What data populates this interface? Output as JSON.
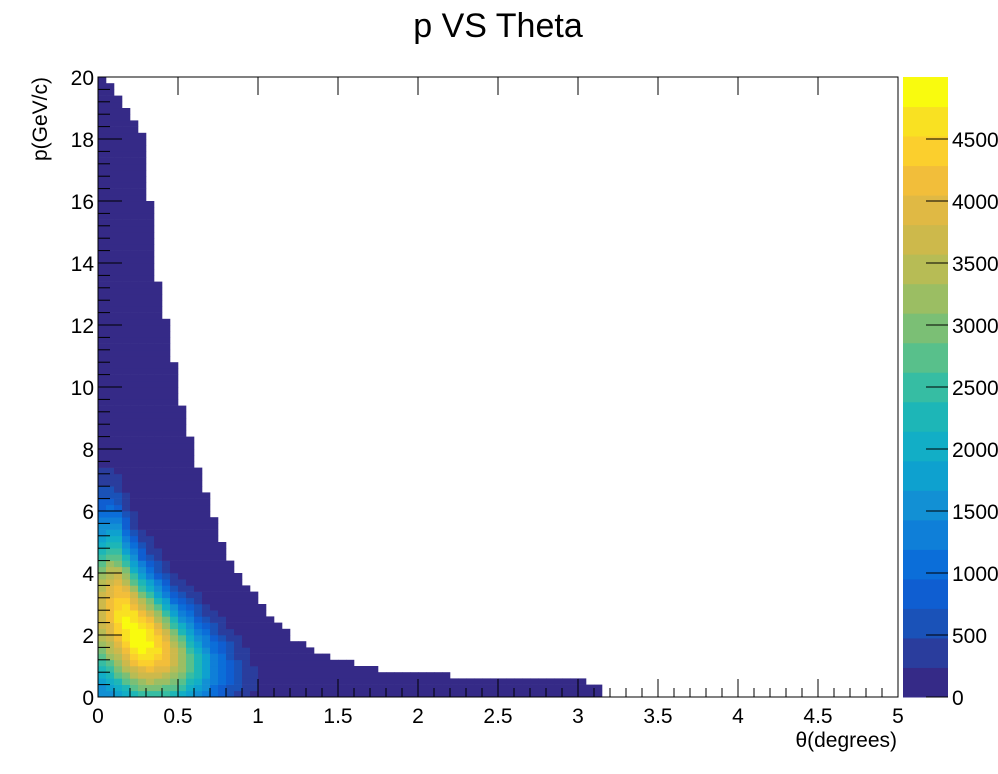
{
  "chart_data": {
    "type": "heatmap",
    "title": "p VS Theta",
    "xlabel": "θ(degrees)",
    "ylabel": "p(GeV/c)",
    "xlim": [
      0,
      5
    ],
    "ylim": [
      0,
      20
    ],
    "x_ticks": [
      "0",
      "0.5",
      "1",
      "1.5",
      "2",
      "2.5",
      "3",
      "3.5",
      "4",
      "4.5",
      "5"
    ],
    "y_ticks": [
      "0",
      "2",
      "4",
      "6",
      "8",
      "10",
      "12",
      "14",
      "16",
      "18",
      "20"
    ],
    "colorbar": {
      "min": 0,
      "max": 5000,
      "tick_labels": [
        "0",
        "500",
        "1000",
        "1500",
        "2000",
        "2500",
        "3000",
        "3500",
        "4000",
        "4500"
      ],
      "palette": [
        "#352a87",
        "#2a3d9d",
        "#1a52b8",
        "#0f5ed1",
        "#0b6ed9",
        "#0f7fd8",
        "#1290d4",
        "#0ea1cf",
        "#12aec6",
        "#1db6b7",
        "#36bda3",
        "#58c08b",
        "#7bbf75",
        "#9bbe63",
        "#b7bc55",
        "#cdb94b",
        "#e0b944",
        "#f2be3a",
        "#fbcf2d",
        "#f9e122",
        "#f9fb0e"
      ]
    },
    "distribution": {
      "description_source": "intensity sampled from the chart",
      "peak": {
        "theta": 0.25,
        "p": 1.8,
        "counts": 4950
      },
      "ridge_p_of_theta": [
        {
          "theta": 0.1,
          "p": 2.8
        },
        {
          "theta": 0.25,
          "p": 1.9
        },
        {
          "theta": 0.5,
          "p": 1.2
        },
        {
          "theta": 1.0,
          "p": 0.55
        },
        {
          "theta": 1.5,
          "p": 0.35
        },
        {
          "theta": 2.0,
          "p": 0.25
        },
        {
          "theta": 3.0,
          "p": 0.2
        }
      ],
      "upper_edge": [
        {
          "theta": 0.05,
          "p": 20
        },
        {
          "theta": 0.3,
          "p": 18
        },
        {
          "theta": 0.35,
          "p": 14
        },
        {
          "theta": 0.45,
          "p": 11.5
        },
        {
          "theta": 0.5,
          "p": 10
        },
        {
          "theta": 0.6,
          "p": 7.8
        },
        {
          "theta": 0.7,
          "p": 6.2
        },
        {
          "theta": 0.8,
          "p": 4.7
        },
        {
          "theta": 0.9,
          "p": 3.8
        },
        {
          "theta": 1.0,
          "p": 3.3
        },
        {
          "theta": 1.1,
          "p": 2.4
        },
        {
          "theta": 1.25,
          "p": 1.8
        },
        {
          "theta": 1.4,
          "p": 1.4
        },
        {
          "theta": 1.6,
          "p": 1.1
        },
        {
          "theta": 1.8,
          "p": 0.85
        },
        {
          "theta": 2.2,
          "p": 0.7
        },
        {
          "theta": 3.0,
          "p": 0.55
        },
        {
          "theta": 3.15,
          "p": 0.4
        }
      ]
    }
  }
}
